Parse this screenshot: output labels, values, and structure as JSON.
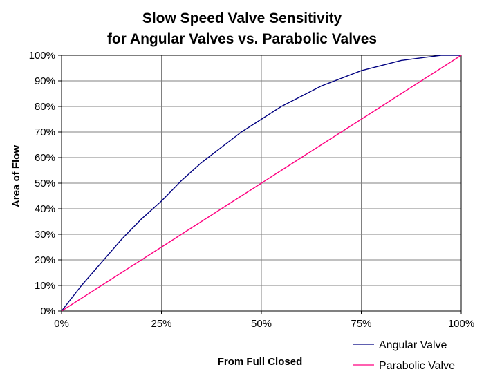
{
  "chart_data": {
    "type": "line",
    "title_lines": [
      "Slow Speed Valve Sensitivity",
      "for Angular Valves vs. Parabolic Valves"
    ],
    "xlabel": "From Full Closed",
    "ylabel": "Area of Flow",
    "xlim": [
      0,
      100
    ],
    "ylim": [
      0,
      100
    ],
    "x_ticks": [
      0,
      25,
      50,
      75,
      100
    ],
    "x_tick_labels": [
      "0%",
      "25%",
      "50%",
      "75%",
      "100%"
    ],
    "y_ticks": [
      0,
      10,
      20,
      30,
      40,
      50,
      60,
      70,
      80,
      90,
      100
    ],
    "y_tick_labels": [
      "0%",
      "10%",
      "20%",
      "30%",
      "40%",
      "50%",
      "60%",
      "70%",
      "80%",
      "90%",
      "100%"
    ],
    "grid": true,
    "legend_position": "bottom-right",
    "series": [
      {
        "name": "Angular Valve",
        "color": "#000080",
        "x": [
          0,
          5,
          10,
          15,
          20,
          25,
          30,
          35,
          40,
          45,
          50,
          55,
          60,
          65,
          70,
          75,
          80,
          85,
          90,
          95,
          100
        ],
        "y": [
          0,
          10,
          19,
          28,
          36,
          43,
          51,
          58,
          64,
          70,
          75,
          80,
          84,
          88,
          91,
          94,
          96,
          98,
          99,
          100,
          100
        ]
      },
      {
        "name": "Parabolic Valve",
        "color": "#FF0080",
        "x": [
          0,
          5,
          10,
          15,
          20,
          25,
          30,
          35,
          40,
          45,
          50,
          55,
          60,
          65,
          70,
          75,
          80,
          85,
          90,
          95,
          100
        ],
        "y": [
          0,
          5,
          10,
          15,
          20,
          25,
          30,
          35,
          40,
          45,
          50,
          55,
          60,
          65,
          70,
          75,
          80,
          85,
          90,
          95,
          100
        ]
      }
    ]
  }
}
